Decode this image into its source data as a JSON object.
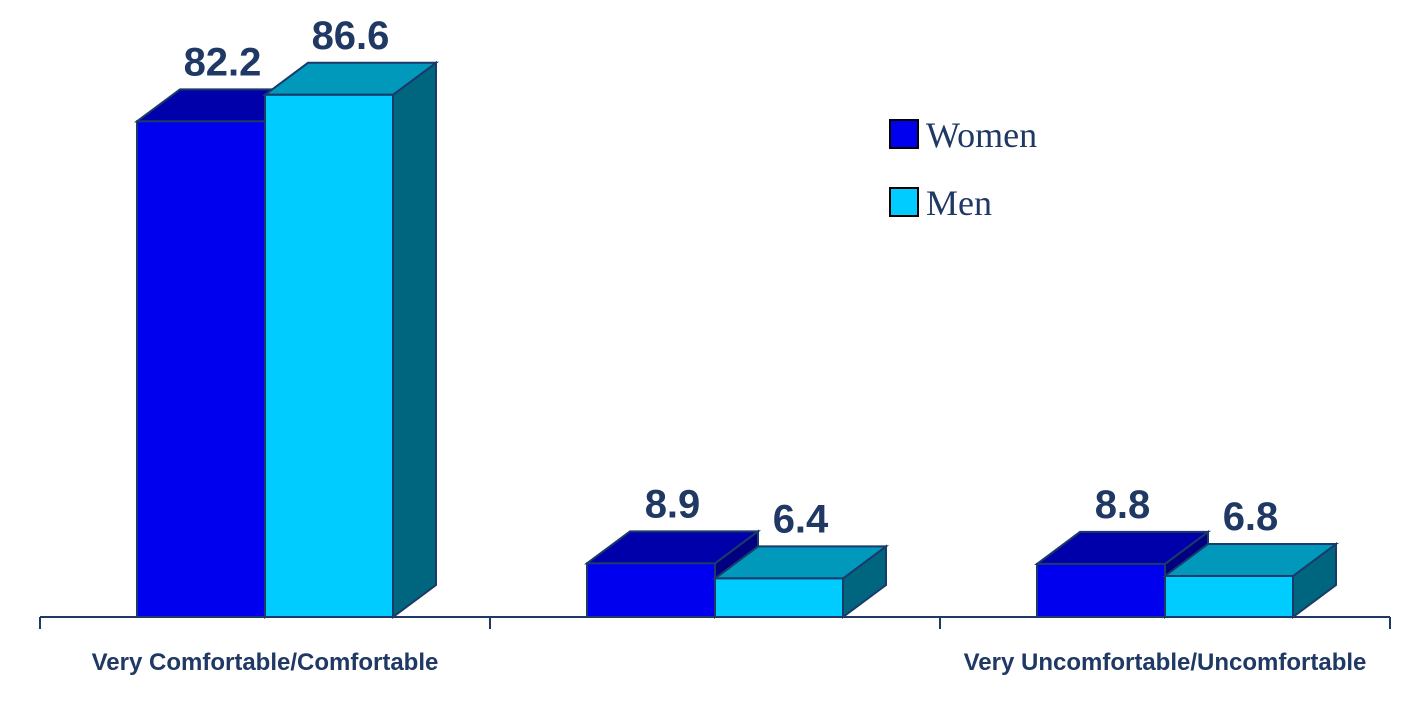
{
  "chart_data": {
    "type": "bar3d",
    "categories": [
      "Very Comfortable/Comfortable",
      null,
      "Very Uncomfortable/Uncomfortable"
    ],
    "series": [
      {
        "name": "Women",
        "color": "#0000ee",
        "values": [
          82.2,
          8.9,
          8.8
        ]
      },
      {
        "name": "Men",
        "color": "#00ccff",
        "values": [
          86.6,
          6.4,
          6.8
        ]
      }
    ],
    "legend": "upper right"
  }
}
